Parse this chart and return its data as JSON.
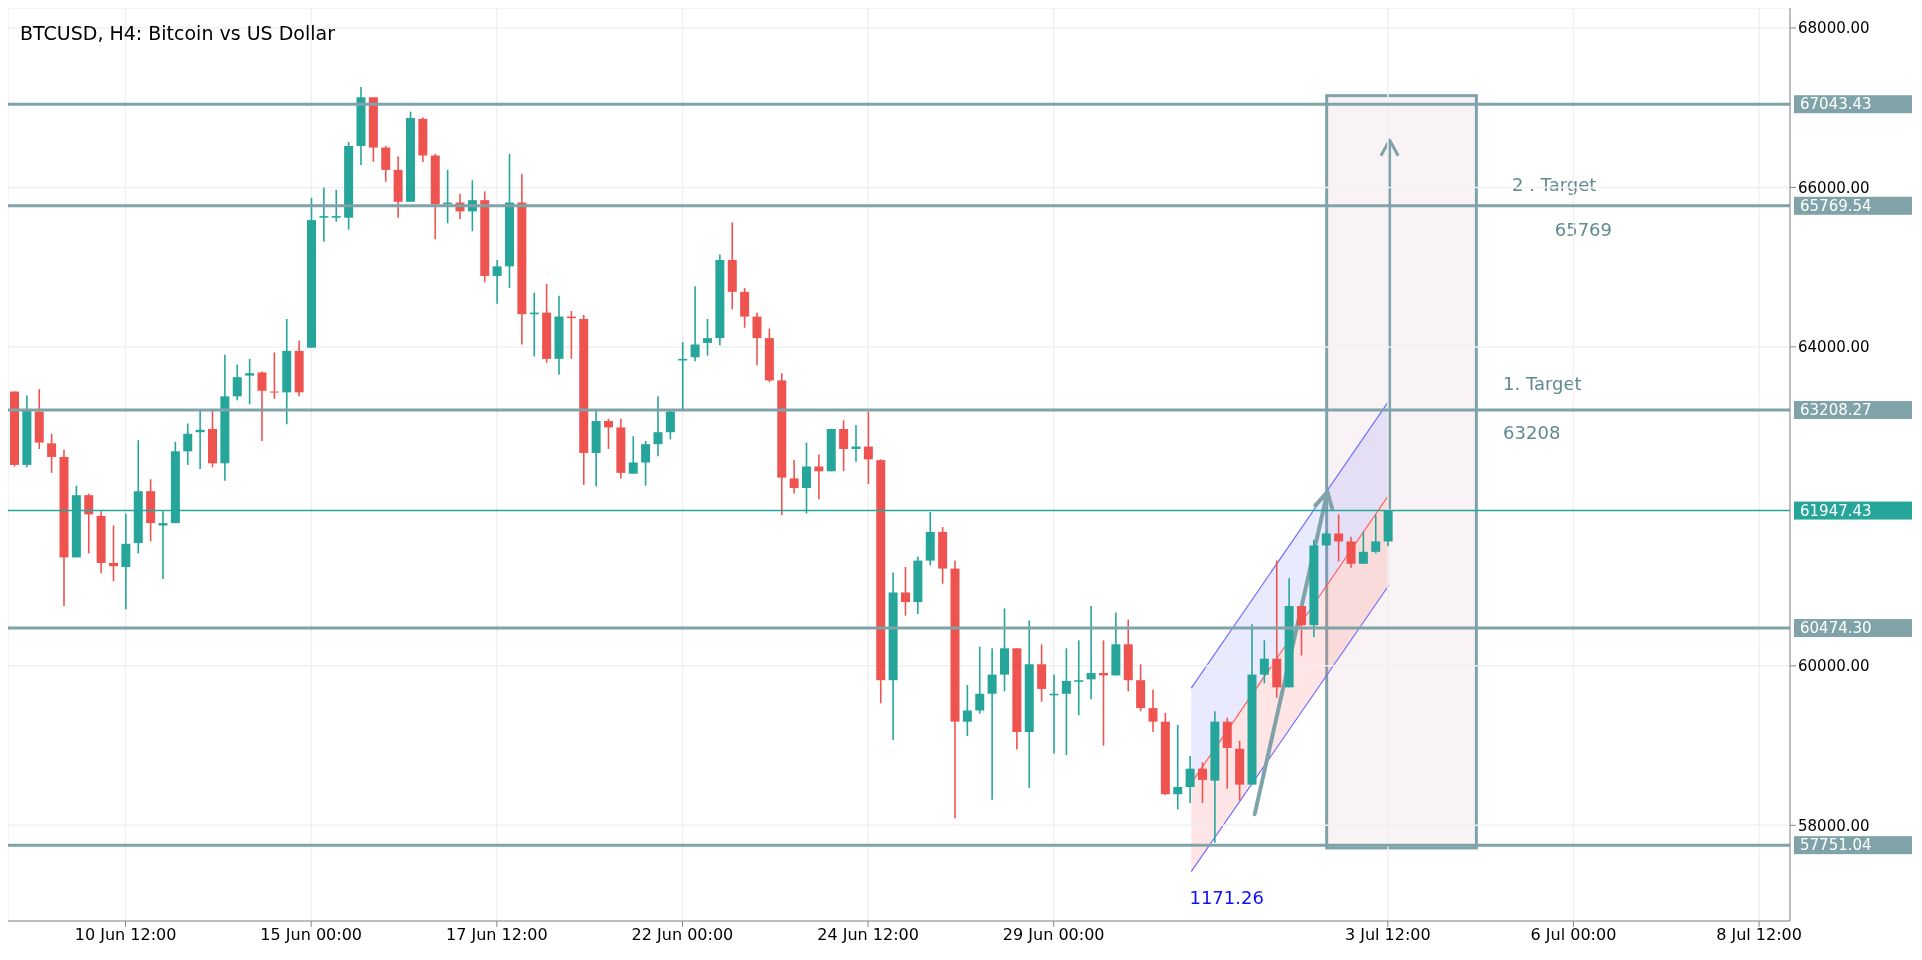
{
  "chart_data": {
    "type": "candlestick",
    "title": "BTCUSD, H4: Bitcoin vs US Dollar",
    "categories": [
      null,
      null,
      null,
      null,
      null,
      null,
      null,
      null,
      null,
      "10 Jun 12:00",
      null,
      null,
      null,
      null,
      null,
      null,
      null,
      null,
      null,
      null,
      null,
      null,
      null,
      null,
      "15 Jun 00:00",
      null,
      null,
      null,
      null,
      null,
      null,
      null,
      null,
      null,
      null,
      null,
      null,
      null,
      null,
      "17 Jun 12:00",
      null,
      null,
      null,
      null,
      null,
      null,
      null,
      null,
      null,
      null,
      null,
      null,
      null,
      null,
      "22 Jun 00:00",
      null,
      null,
      null,
      null,
      null,
      null,
      null,
      null,
      null,
      null,
      null,
      null,
      null,
      null,
      "24 Jun 12:00",
      null,
      null,
      null,
      null,
      null,
      null,
      null,
      null,
      null,
      null,
      null,
      null,
      null,
      null,
      "29 Jun 00:00",
      null,
      null,
      null,
      null,
      null,
      null,
      null,
      null,
      null,
      null,
      null,
      null,
      null,
      null,
      null,
      null,
      null,
      null,
      null,
      null,
      null,
      null,
      null,
      null,
      null,
      null,
      "3 Jul 12:00",
      null,
      null,
      null,
      null,
      null,
      null,
      null,
      null,
      null,
      null,
      null,
      null,
      null,
      null,
      "6 Jul 00:00",
      null,
      null,
      null,
      null,
      null,
      null,
      null,
      null,
      null,
      null,
      null,
      null,
      null,
      null,
      "8 Jul 12:00",
      null,
      null
    ],
    "ohlc": [
      [
        63440,
        63440,
        62500,
        62520
      ],
      [
        62520,
        63390,
        62490,
        63200
      ],
      [
        63190,
        63470,
        62720,
        62800
      ],
      [
        62790,
        62910,
        62420,
        62620
      ],
      [
        62620,
        62710,
        60750,
        61360
      ],
      [
        61360,
        62260,
        61360,
        62140
      ],
      [
        62140,
        62160,
        61410,
        61900
      ],
      [
        61880,
        61940,
        61160,
        61290
      ],
      [
        61290,
        61760,
        61060,
        61250
      ],
      [
        61240,
        61910,
        60710,
        61530
      ],
      [
        61540,
        62830,
        61410,
        62190
      ],
      [
        62190,
        62340,
        61560,
        61790
      ],
      [
        61760,
        61940,
        61090,
        61790
      ],
      [
        61790,
        62810,
        61790,
        62690
      ],
      [
        62690,
        63040,
        62520,
        62910
      ],
      [
        62930,
        63200,
        62470,
        62960
      ],
      [
        62970,
        63200,
        62490,
        62540
      ],
      [
        62540,
        63900,
        62320,
        63380
      ],
      [
        63380,
        63780,
        63330,
        63620
      ],
      [
        63640,
        63850,
        63280,
        63670
      ],
      [
        63680,
        63690,
        62820,
        63450
      ],
      [
        63440,
        63930,
        63350,
        63430
      ],
      [
        63430,
        64350,
        63030,
        63950
      ],
      [
        63950,
        64080,
        63380,
        63430
      ],
      [
        63990,
        65870,
        63990,
        65590
      ],
      [
        65620,
        66000,
        65320,
        65640
      ],
      [
        65620,
        65970,
        65570,
        65640
      ],
      [
        65620,
        66570,
        65470,
        66520
      ],
      [
        66520,
        67260,
        66280,
        67130
      ],
      [
        67130,
        67130,
        66320,
        66500
      ],
      [
        66500,
        66520,
        66070,
        66220
      ],
      [
        66220,
        66390,
        65620,
        65820
      ],
      [
        65820,
        66950,
        65820,
        66870
      ],
      [
        66860,
        66880,
        66320,
        66400
      ],
      [
        66400,
        66420,
        65350,
        65790
      ],
      [
        65790,
        66220,
        65550,
        65810
      ],
      [
        65810,
        65920,
        65600,
        65700
      ],
      [
        65700,
        66090,
        65450,
        65840
      ],
      [
        65840,
        65950,
        64810,
        64890
      ],
      [
        64890,
        65090,
        64540,
        65010
      ],
      [
        65010,
        66420,
        64740,
        65810
      ],
      [
        65810,
        66170,
        64030,
        64410
      ],
      [
        64410,
        64680,
        63880,
        64430
      ],
      [
        64430,
        64790,
        63800,
        63850
      ],
      [
        63850,
        64640,
        63650,
        64380
      ],
      [
        64380,
        64450,
        63850,
        64360
      ],
      [
        64350,
        64400,
        62270,
        62670
      ],
      [
        62670,
        63200,
        62250,
        63070
      ],
      [
        63070,
        63100,
        62720,
        62990
      ],
      [
        62990,
        63100,
        62350,
        62420
      ],
      [
        62410,
        62880,
        62410,
        62550
      ],
      [
        62550,
        62820,
        62260,
        62780
      ],
      [
        62780,
        63380,
        62630,
        62930
      ],
      [
        62930,
        63210,
        62840,
        63190
      ],
      [
        63830,
        64060,
        63210,
        63850
      ],
      [
        63870,
        64760,
        63820,
        64030
      ],
      [
        64050,
        64350,
        63890,
        64110
      ],
      [
        64110,
        65160,
        64020,
        65090
      ],
      [
        65090,
        65560,
        64470,
        64690
      ],
      [
        64690,
        64740,
        64240,
        64380
      ],
      [
        64380,
        64430,
        63770,
        64110
      ],
      [
        64110,
        64230,
        63560,
        63580
      ],
      [
        63580,
        63670,
        61890,
        62360
      ],
      [
        62350,
        62580,
        62160,
        62230
      ],
      [
        62230,
        62800,
        61910,
        62500
      ],
      [
        62500,
        62650,
        62090,
        62440
      ],
      [
        62440,
        62970,
        62440,
        62970
      ],
      [
        62970,
        63080,
        62440,
        62720
      ],
      [
        62720,
        63020,
        62560,
        62750
      ],
      [
        62750,
        63190,
        62280,
        62590
      ],
      [
        62580,
        62590,
        59530,
        59820
      ],
      [
        59820,
        61170,
        59070,
        60920
      ],
      [
        60920,
        61240,
        60630,
        60800
      ],
      [
        60800,
        61370,
        60650,
        61320
      ],
      [
        61320,
        61930,
        61260,
        61680
      ],
      [
        61680,
        61740,
        61030,
        61220
      ],
      [
        61220,
        61320,
        58090,
        59300
      ],
      [
        59300,
        59760,
        59120,
        59440
      ],
      [
        59440,
        60240,
        59400,
        59650
      ],
      [
        59650,
        60220,
        58320,
        59890
      ],
      [
        59890,
        60720,
        59680,
        60220
      ],
      [
        60220,
        60220,
        58950,
        59170
      ],
      [
        59170,
        60570,
        58470,
        60020
      ],
      [
        60020,
        60270,
        59550,
        59710
      ],
      [
        59630,
        59890,
        58900,
        59650
      ],
      [
        59650,
        60220,
        58880,
        59810
      ],
      [
        59800,
        60320,
        59380,
        59820
      ],
      [
        59830,
        60750,
        59580,
        59910
      ],
      [
        59910,
        60320,
        59000,
        59880
      ],
      [
        59880,
        60670,
        59880,
        60270
      ],
      [
        60270,
        60580,
        59680,
        59820
      ],
      [
        59820,
        60020,
        59430,
        59470
      ],
      [
        59470,
        59700,
        59170,
        59300
      ],
      [
        59300,
        59410,
        58380,
        58390
      ],
      [
        58390,
        59260,
        58200,
        58480
      ],
      [
        58480,
        58870,
        58280,
        58710
      ],
      [
        58710,
        58790,
        58280,
        58570
      ],
      [
        58560,
        59430,
        57780,
        59300
      ],
      [
        59300,
        59350,
        58460,
        58970
      ],
      [
        58960,
        59060,
        58310,
        58510
      ],
      [
        58510,
        60520,
        58510,
        59890
      ],
      [
        59890,
        60320,
        59780,
        60090
      ],
      [
        60090,
        61320,
        59600,
        59730
      ],
      [
        59730,
        61100,
        59730,
        60750
      ],
      [
        60750,
        60750,
        60130,
        60510
      ],
      [
        60510,
        61580,
        60360,
        61510
      ],
      [
        61510,
        61680,
        61510,
        61660
      ],
      [
        61660,
        61900,
        61310,
        61560
      ],
      [
        61560,
        61620,
        61230,
        61280
      ],
      [
        61280,
        61680,
        61280,
        61430
      ],
      [
        61430,
        61890,
        61410,
        61560
      ],
      [
        61560,
        61947.43,
        61500,
        61947.43
      ],
      null,
      null,
      null,
      null,
      null,
      null,
      null,
      null,
      null,
      null,
      null,
      null,
      null,
      null,
      null,
      null,
      null,
      null,
      null,
      null,
      null,
      null,
      null,
      null,
      null,
      null,
      null,
      null,
      null,
      null,
      null,
      null
    ],
    "colors": [
      "#ef5350",
      "#26a69a",
      "#ef5350",
      "#ef5350",
      "#ef5350",
      "#26a69a",
      "#ef5350",
      "#ef5350",
      "#ef5350",
      "#26a69a",
      "#26a69a",
      "#ef5350",
      "#26a69a",
      "#26a69a",
      "#26a69a",
      "#26a69a",
      "#ef5350",
      "#26a69a",
      "#26a69a",
      "#26a69a",
      "#ef5350",
      "#ef5350",
      "#26a69a",
      "#ef5350",
      "#26a69a",
      "#26a69a",
      "#26a69a",
      "#26a69a",
      "#26a69a",
      "#ef5350",
      "#ef5350",
      "#ef5350",
      "#26a69a",
      "#ef5350",
      "#ef5350",
      "#26a69a",
      "#ef5350",
      "#26a69a",
      "#ef5350",
      "#26a69a",
      "#26a69a",
      "#ef5350",
      "#26a69a",
      "#ef5350",
      "#26a69a",
      "#ef5350",
      "#ef5350",
      "#26a69a",
      "#ef5350",
      "#ef5350",
      "#26a69a",
      "#26a69a",
      "#26a69a",
      "#26a69a",
      "#26a69a",
      "#26a69a",
      "#26a69a",
      "#26a69a",
      "#ef5350",
      "#ef5350",
      "#ef5350",
      "#ef5350",
      "#ef5350",
      "#ef5350",
      "#26a69a",
      "#ef5350",
      "#26a69a",
      "#ef5350",
      "#26a69a",
      "#ef5350",
      "#ef5350",
      "#26a69a",
      "#ef5350",
      "#26a69a",
      "#26a69a",
      "#ef5350",
      "#ef5350",
      "#26a69a",
      "#26a69a",
      "#26a69a",
      "#26a69a",
      "#ef5350",
      "#26a69a",
      "#ef5350",
      "#26a69a",
      "#26a69a",
      "#26a69a",
      "#26a69a",
      "#ef5350",
      "#26a69a",
      "#ef5350",
      "#ef5350",
      "#ef5350",
      "#ef5350",
      "#26a69a",
      "#26a69a",
      "#ef5350",
      "#26a69a",
      "#ef5350",
      "#ef5350",
      "#26a69a",
      "#26a69a",
      "#ef5350",
      "#26a69a",
      "#ef5350",
      "#26a69a",
      "#26a69a",
      "#ef5350",
      "#ef5350",
      "#26a69a",
      "#26a69a",
      "#26a69a",
      null,
      null,
      null,
      null,
      null,
      null,
      null,
      null,
      null,
      null,
      null,
      null,
      null,
      null,
      null,
      null,
      null,
      null,
      null,
      null,
      null,
      null,
      null,
      null,
      null,
      null,
      null,
      null,
      null,
      null,
      null,
      null
    ],
    "ylim": [
      56800,
      68250
    ],
    "yticks": [
      {
        "value": 58000,
        "label": "58000.00"
      },
      {
        "value": 60000,
        "label": "60000.00"
      },
      {
        "value": 64000,
        "label": "64000.00"
      },
      {
        "value": 66000,
        "label": "66000.00"
      },
      {
        "value": 68000,
        "label": "68000.00"
      }
    ],
    "ref_lines": [
      {
        "axis": "y",
        "value": 67043.43,
        "label": "67043.43",
        "color": "#7fa3a8"
      },
      {
        "axis": "y",
        "value": 65769.54,
        "label": "65769.54",
        "color": "#7fa3a8"
      },
      {
        "axis": "y",
        "value": 63208.27,
        "label": "63208.27",
        "color": "#7fa3a8"
      },
      {
        "axis": "y",
        "value": 61947.43,
        "label": "61947.43",
        "color": "#26a69a"
      },
      {
        "axis": "y",
        "value": 60474.3,
        "label": "60474.30",
        "color": "#7fa3a8"
      },
      {
        "axis": "y",
        "value": 57751.04,
        "label": "57751.04",
        "color": "#7fa3a8"
      }
    ],
    "annotations": [
      "2 . Target",
      "65769",
      "1. Target",
      "63208",
      "1171.26"
    ],
    "grid": true
  }
}
